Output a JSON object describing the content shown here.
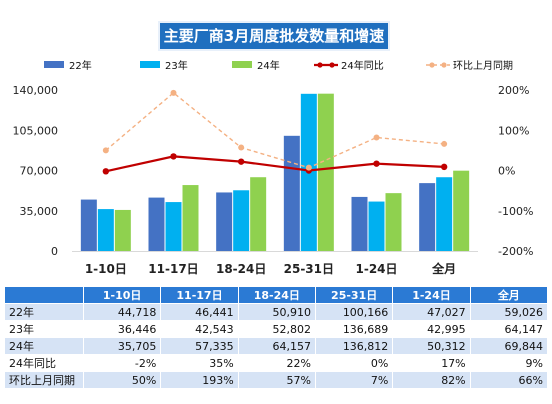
{
  "title": "主要厂商3月周度批发数量和增速",
  "colors": {
    "s22": "#4472c4",
    "s23": "#00b0f0",
    "s24": "#8fd14f",
    "yoy": "#c00000",
    "mom": "#f4b183",
    "header": "#2b7ad4",
    "title_bg": "#1f6fbf"
  },
  "chart_data": {
    "type": "bar",
    "categories": [
      "1-10日",
      "11-17日",
      "18-24日",
      "25-31日",
      "1-24日",
      "全月"
    ],
    "series": [
      {
        "name": "22年",
        "kind": "bar",
        "values": [
          44718,
          46441,
          50910,
          100166,
          47027,
          59026
        ]
      },
      {
        "name": "23年",
        "kind": "bar",
        "values": [
          36446,
          42543,
          52802,
          136689,
          42995,
          64147
        ]
      },
      {
        "name": "24年",
        "kind": "bar",
        "values": [
          35705,
          57335,
          64157,
          136812,
          50312,
          69844
        ]
      },
      {
        "name": "24年同比",
        "kind": "line",
        "axis": "right",
        "values": [
          -2,
          35,
          22,
          0,
          17,
          9
        ]
      },
      {
        "name": "环比上月同期",
        "kind": "line-dashed",
        "axis": "right",
        "values": [
          50,
          193,
          57,
          7,
          82,
          66
        ]
      }
    ],
    "left_axis": {
      "min": 0,
      "max": 140000,
      "ticks": [
        "0",
        "35,000",
        "70,000",
        "105,000",
        "140,000"
      ]
    },
    "right_axis": {
      "min": -200,
      "max": 200,
      "ticks": [
        "-200%",
        "-100%",
        "0%",
        "100%",
        "200%"
      ]
    },
    "legend_position": "top",
    "grid": false
  },
  "table": {
    "headers": [
      "",
      "1-10日",
      "11-17日",
      "18-24日",
      "25-31日",
      "1-24日",
      "全月"
    ],
    "rows": [
      {
        "label": "22年",
        "cells": [
          "44,718",
          "46,441",
          "50,910",
          "100,166",
          "47,027",
          "59,026"
        ]
      },
      {
        "label": "23年",
        "cells": [
          "36,446",
          "42,543",
          "52,802",
          "136,689",
          "42,995",
          "64,147"
        ]
      },
      {
        "label": "24年",
        "cells": [
          "35,705",
          "57,335",
          "64,157",
          "136,812",
          "50,312",
          "69,844"
        ]
      },
      {
        "label": "24年同比",
        "cells": [
          "-2%",
          "35%",
          "22%",
          "0%",
          "17%",
          "9%"
        ]
      },
      {
        "label": "环比上月同期",
        "cells": [
          "50%",
          "193%",
          "57%",
          "7%",
          "82%",
          "66%"
        ]
      }
    ]
  }
}
